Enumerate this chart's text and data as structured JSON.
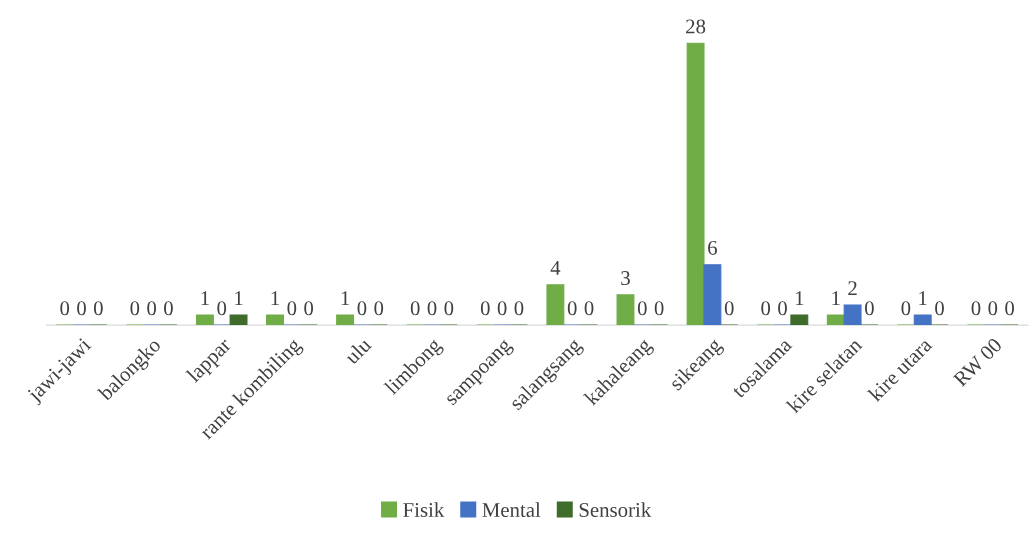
{
  "chart_data": {
    "type": "bar",
    "categories": [
      "jawi-jawi",
      "balongko",
      "lappar",
      "rante kombiling",
      "ulu",
      "limbong",
      "sampoang",
      "salangsang",
      "kahaleang",
      "sikeang",
      "tosalama",
      "kire selatan",
      "kire utara",
      "RW 00"
    ],
    "series": [
      {
        "name": "Fisik",
        "color": "#70ad47",
        "values": [
          0,
          0,
          1,
          1,
          1,
          0,
          0,
          4,
          3,
          28,
          0,
          1,
          0,
          0
        ]
      },
      {
        "name": "Mental",
        "color": "#4472c4",
        "values": [
          0,
          0,
          0,
          0,
          0,
          0,
          0,
          0,
          0,
          6,
          0,
          2,
          1,
          0
        ]
      },
      {
        "name": "Sensorik",
        "color": "#3f6b2b",
        "values": [
          0,
          0,
          1,
          0,
          0,
          0,
          0,
          0,
          0,
          0,
          1,
          0,
          0,
          0
        ]
      }
    ],
    "data_labels": true,
    "grid": false,
    "legend": "bottom",
    "tick_labels": "x"
  }
}
